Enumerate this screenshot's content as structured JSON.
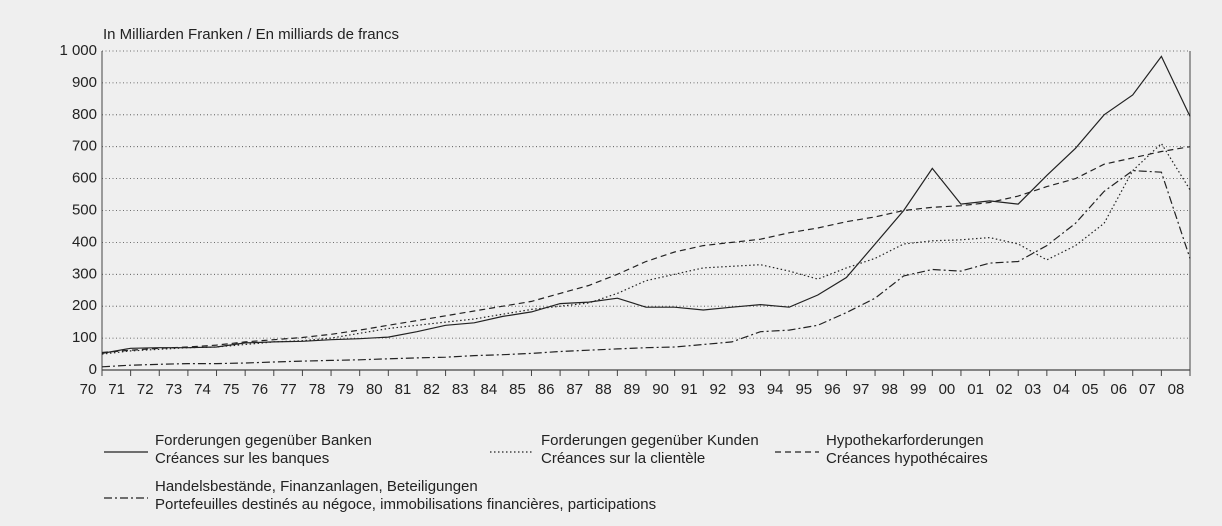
{
  "chart_data": {
    "type": "line",
    "y_label": "In Milliarden Franken / En milliards de francs",
    "categories": [
      "70",
      "71",
      "72",
      "73",
      "74",
      "75",
      "76",
      "77",
      "78",
      "79",
      "80",
      "81",
      "82",
      "83",
      "84",
      "85",
      "86",
      "87",
      "88",
      "89",
      "90",
      "91",
      "92",
      "93",
      "94",
      "95",
      "96",
      "97",
      "98",
      "99",
      "00",
      "01",
      "02",
      "03",
      "04",
      "05",
      "06",
      "07",
      "08"
    ],
    "ylim": [
      0,
      1000
    ],
    "yticks": [
      0,
      100,
      200,
      300,
      400,
      500,
      600,
      700,
      800,
      900,
      {
        "value": 1000,
        "label": "1 000"
      }
    ],
    "grid": true,
    "series": [
      {
        "name": [
          "Forderungen gegenüber Banken",
          "Créances sur les banques"
        ],
        "color": "#222222",
        "style": "solid",
        "values": [
          52,
          68,
          70,
          70,
          72,
          85,
          88,
          90,
          95,
          98,
          103,
          120,
          140,
          148,
          168,
          182,
          208,
          213,
          225,
          197,
          197,
          188,
          197,
          205,
          197,
          235,
          290,
          395,
          500,
          632,
          520,
          530,
          520,
          610,
          695,
          800,
          862,
          983,
          795
        ]
      },
      {
        "name": [
          "Forderungen gegenüber Kunden",
          "Créances sur la clientèle"
        ],
        "color": "#222222",
        "style": "dotted",
        "values": [
          50,
          60,
          65,
          70,
          72,
          80,
          88,
          92,
          100,
          115,
          130,
          140,
          150,
          160,
          175,
          190,
          200,
          210,
          240,
          280,
          300,
          320,
          325,
          330,
          310,
          285,
          320,
          350,
          395,
          405,
          408,
          415,
          395,
          345,
          390,
          460,
          625,
          710,
          565
        ]
      },
      {
        "name": [
          "Hypothekarforderungen",
          "Créances hypothécaires"
        ],
        "color": "#222222",
        "style": "dashed",
        "values": [
          55,
          62,
          68,
          72,
          78,
          88,
          95,
          102,
          112,
          125,
          140,
          155,
          170,
          185,
          200,
          215,
          240,
          265,
          300,
          340,
          370,
          390,
          400,
          410,
          430,
          445,
          465,
          480,
          500,
          510,
          515,
          525,
          545,
          575,
          600,
          645,
          665,
          685,
          700
        ]
      },
      {
        "name": [
          "Handelsbestände, Finanzanlagen, Beteiligungen",
          "Portefeuilles destinés au négoce, immobilisations financières, participations"
        ],
        "color": "#222222",
        "style": "dashdot",
        "values": [
          10,
          15,
          18,
          20,
          20,
          22,
          25,
          28,
          30,
          32,
          35,
          38,
          40,
          45,
          48,
          52,
          58,
          62,
          66,
          70,
          72,
          80,
          88,
          120,
          125,
          140,
          180,
          225,
          295,
          315,
          310,
          335,
          340,
          390,
          460,
          560,
          625,
          620,
          350
        ]
      }
    ]
  }
}
